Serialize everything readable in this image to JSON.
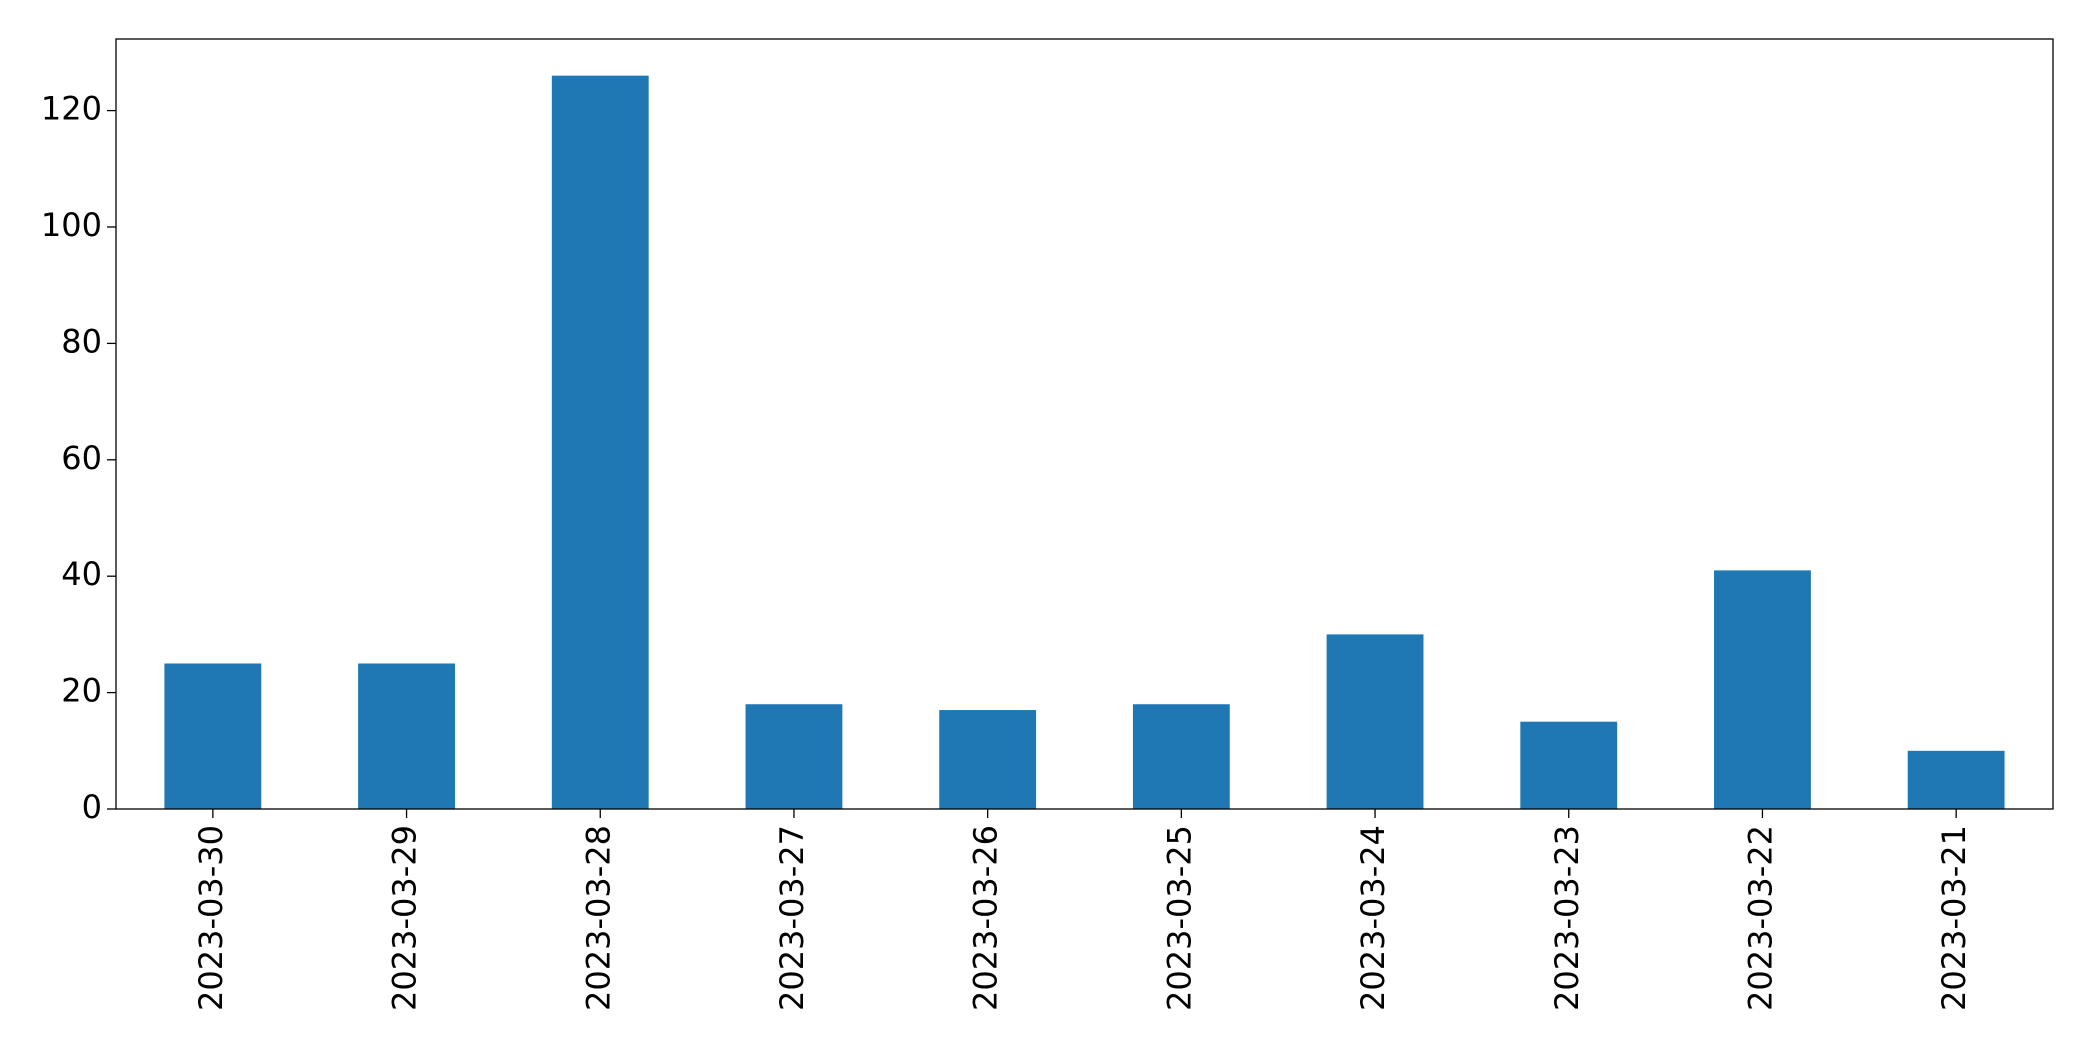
{
  "chart_data": {
    "type": "bar",
    "categories": [
      "2023-03-30",
      "2023-03-29",
      "2023-03-28",
      "2023-03-27",
      "2023-03-26",
      "2023-03-25",
      "2023-03-24",
      "2023-03-23",
      "2023-03-22",
      "2023-03-21"
    ],
    "values": [
      25,
      25,
      126,
      18,
      17,
      18,
      30,
      15,
      41,
      10
    ],
    "color": "#1f77b4",
    "ylim": [
      0,
      132.3
    ],
    "yticks": [
      0,
      20,
      40,
      60,
      80,
      100,
      120
    ],
    "grid": false
  }
}
